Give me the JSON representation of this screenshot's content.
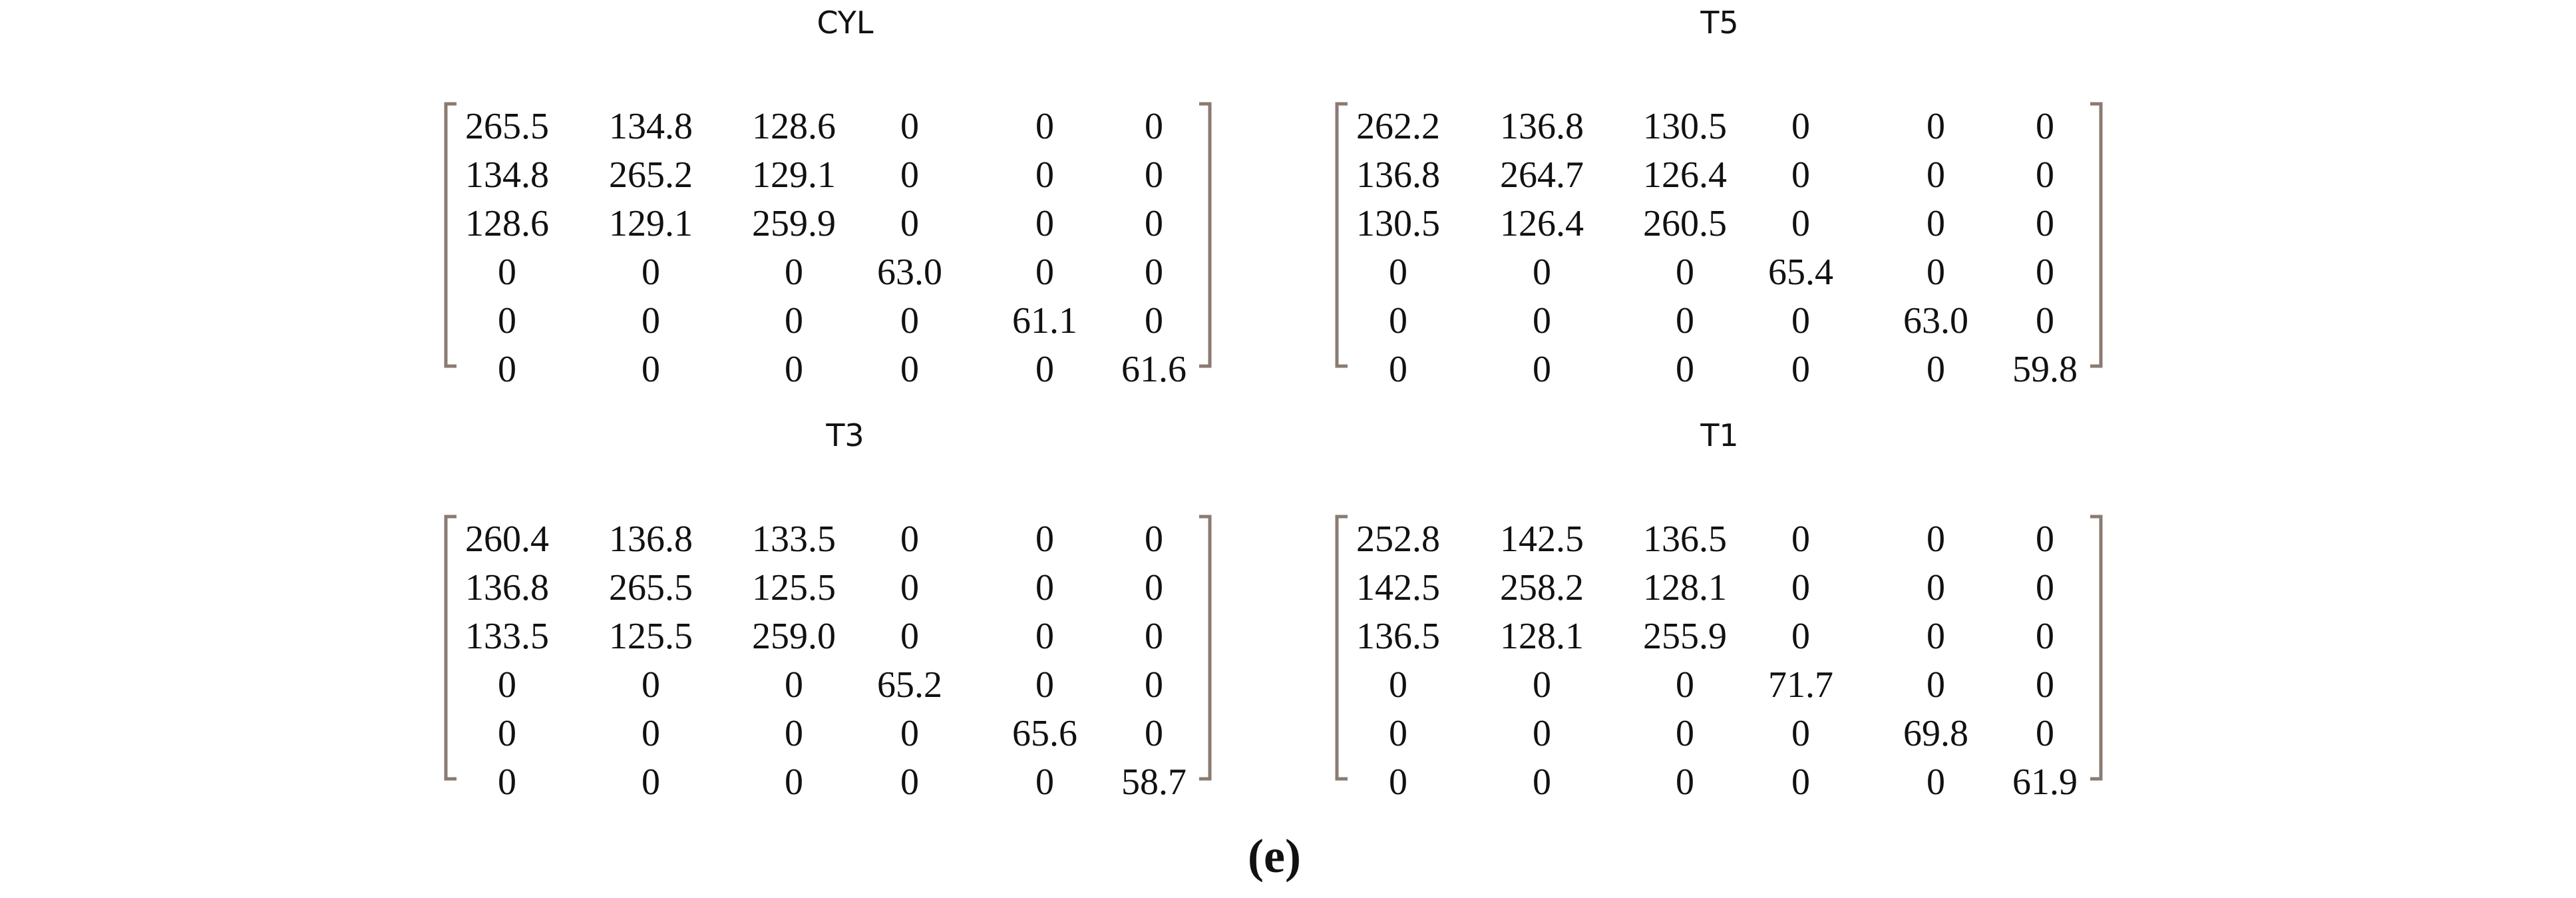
{
  "figure": {
    "matrices": [
      {
        "title": "CYL",
        "rows": [
          [
            "265.5",
            "134.8",
            "128.6",
            "0",
            "0",
            "0"
          ],
          [
            "134.8",
            "265.2",
            "129.1",
            "0",
            "0",
            "0"
          ],
          [
            "128.6",
            "129.1",
            "259.9",
            "0",
            "0",
            "0"
          ],
          [
            "0",
            "0",
            "0",
            "63.0",
            "0",
            "0"
          ],
          [
            "0",
            "0",
            "0",
            "0",
            "61.1",
            "0"
          ],
          [
            "0",
            "0",
            "0",
            "0",
            "0",
            "61.6"
          ]
        ]
      },
      {
        "title": "T5",
        "rows": [
          [
            "262.2",
            "136.8",
            "130.5",
            "0",
            "0",
            "0"
          ],
          [
            "136.8",
            "264.7",
            "126.4",
            "0",
            "0",
            "0"
          ],
          [
            "130.5",
            "126.4",
            "260.5",
            "0",
            "0",
            "0"
          ],
          [
            "0",
            "0",
            "0",
            "65.4",
            "0",
            "0"
          ],
          [
            "0",
            "0",
            "0",
            "0",
            "63.0",
            "0"
          ],
          [
            "0",
            "0",
            "0",
            "0",
            "0",
            "59.8"
          ]
        ]
      },
      {
        "title": "T3",
        "rows": [
          [
            "260.4",
            "136.8",
            "133.5",
            "0",
            "0",
            "0"
          ],
          [
            "136.8",
            "265.5",
            "125.5",
            "0",
            "0",
            "0"
          ],
          [
            "133.5",
            "125.5",
            "259.0",
            "0",
            "0",
            "0"
          ],
          [
            "0",
            "0",
            "0",
            "65.2",
            "0",
            "0"
          ],
          [
            "0",
            "0",
            "0",
            "0",
            "65.6",
            "0"
          ],
          [
            "0",
            "0",
            "0",
            "0",
            "0",
            "58.7"
          ]
        ]
      },
      {
        "title": "T1",
        "rows": [
          [
            "252.8",
            "142.5",
            "136.5",
            "0",
            "0",
            "0"
          ],
          [
            "142.5",
            "258.2",
            "128.1",
            "0",
            "0",
            "0"
          ],
          [
            "136.5",
            "128.1",
            "255.9",
            "0",
            "0",
            "0"
          ],
          [
            "0",
            "0",
            "0",
            "71.7",
            "0",
            "0"
          ],
          [
            "0",
            "0",
            "0",
            "0",
            "69.8",
            "0"
          ],
          [
            "0",
            "0",
            "0",
            "0",
            "0",
            "61.9"
          ]
        ]
      }
    ],
    "caption": "(e)"
  }
}
